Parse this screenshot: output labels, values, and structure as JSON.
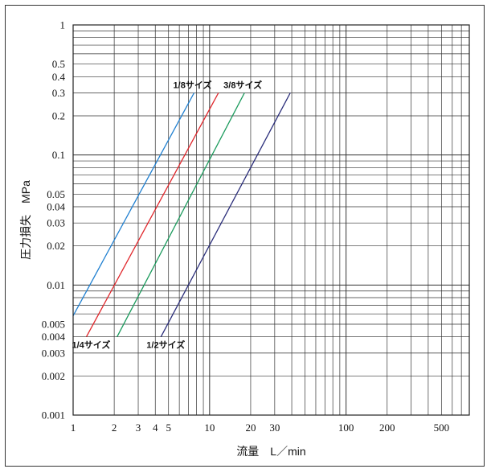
{
  "chart_data": {
    "type": "line",
    "xscale": "log",
    "yscale": "log",
    "xlim": [
      1,
      800
    ],
    "ylim": [
      0.001,
      1
    ],
    "xlabel": "流量　L／min",
    "ylabel": "圧力損失　MPa",
    "grid": true,
    "xticks": [
      {
        "value": 1,
        "label": "1"
      },
      {
        "value": 2,
        "label": "2"
      },
      {
        "value": 3,
        "label": "3"
      },
      {
        "value": 4,
        "label": "4"
      },
      {
        "value": 5,
        "label": "5"
      },
      {
        "value": 10,
        "label": "10"
      },
      {
        "value": 20,
        "label": "20"
      },
      {
        "value": 30,
        "label": "30"
      },
      {
        "value": 100,
        "label": "100"
      },
      {
        "value": 200,
        "label": "200"
      },
      {
        "value": 500,
        "label": "500"
      }
    ],
    "yticks": [
      {
        "value": 0.001,
        "label": "0.001"
      },
      {
        "value": 0.002,
        "label": "0.002"
      },
      {
        "value": 0.003,
        "label": "0.003"
      },
      {
        "value": 0.004,
        "label": "0.004"
      },
      {
        "value": 0.005,
        "label": "0.005"
      },
      {
        "value": 0.01,
        "label": "0.01"
      },
      {
        "value": 0.02,
        "label": "0.02"
      },
      {
        "value": 0.03,
        "label": "0.03"
      },
      {
        "value": 0.04,
        "label": "0.04"
      },
      {
        "value": 0.05,
        "label": "0.05"
      },
      {
        "value": 0.1,
        "label": "0.1"
      },
      {
        "value": 0.2,
        "label": "0.2"
      },
      {
        "value": 0.3,
        "label": "0.3"
      },
      {
        "value": 0.4,
        "label": "0.4"
      },
      {
        "value": 0.5,
        "label": "0.5"
      },
      {
        "value": 1,
        "label": "1"
      }
    ],
    "series": [
      {
        "name": "1/8サイズ",
        "color": "#1f7fd0",
        "x": [
          1.0,
          7.7
        ],
        "y": [
          0.0058,
          0.3
        ],
        "label_pos": "top"
      },
      {
        "name": "1/4サイズ",
        "color": "#e0262b",
        "x": [
          1.25,
          11.6
        ],
        "y": [
          0.004,
          0.3
        ],
        "label_pos": "bottom"
      },
      {
        "name": "3/8サイズ",
        "color": "#1a9a5c",
        "x": [
          2.1,
          18.0
        ],
        "y": [
          0.004,
          0.3
        ],
        "label_pos": "top"
      },
      {
        "name": "1/2サイズ",
        "color": "#2a2d7a",
        "x": [
          4.4,
          39.0
        ],
        "y": [
          0.004,
          0.3
        ],
        "label_pos": "bottom"
      }
    ]
  }
}
